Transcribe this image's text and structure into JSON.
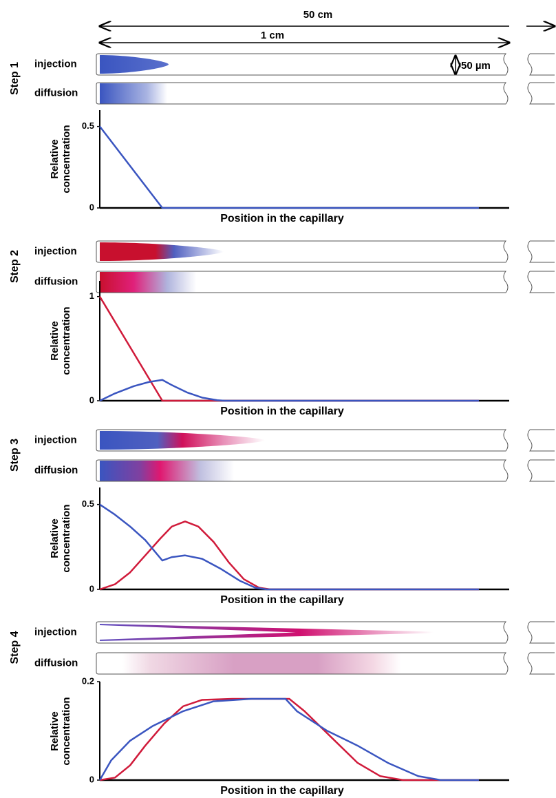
{
  "header": {
    "total_length": "50 cm",
    "segment_length": "1 cm",
    "diameter": "50 µm"
  },
  "chart_data": [
    {
      "type": "line",
      "step": "Step 1",
      "rows": [
        "injection",
        "diffusion"
      ],
      "ylabel": "Relative concentration",
      "xlabel": "Position in the capillary",
      "xlim": [
        0,
        108
      ],
      "ylim": [
        0,
        0.6
      ],
      "yticks": [
        0,
        0.5
      ],
      "series": [
        {
          "color": "#3a55c0",
          "x": [
            0,
            16.5,
            100
          ],
          "values": [
            0.5,
            0,
            0
          ]
        }
      ]
    },
    {
      "type": "line",
      "step": "Step 2",
      "rows": [
        "injection",
        "diffusion"
      ],
      "ylabel": "Relative concentration",
      "xlabel": "Position in the capillary",
      "xlim": [
        0,
        108
      ],
      "ylim": [
        0,
        1.15
      ],
      "yticks": [
        0,
        1
      ],
      "series": [
        {
          "color": "#d01a3a",
          "x": [
            0,
            16.5,
            100
          ],
          "values": [
            1,
            0,
            0
          ]
        },
        {
          "color": "#3a55c0",
          "x": [
            0,
            4,
            9,
            13,
            16.5,
            19,
            23,
            27,
            31,
            33,
            100
          ],
          "values": [
            0,
            0.07,
            0.14,
            0.18,
            0.2,
            0.15,
            0.08,
            0.03,
            0.005,
            0,
            0
          ]
        }
      ]
    },
    {
      "type": "line",
      "step": "Step 3",
      "rows": [
        "injection",
        "diffusion"
      ],
      "ylabel": "Relative concentration",
      "xlabel": "Position in the capillary",
      "xlim": [
        0,
        108
      ],
      "ylim": [
        0,
        0.6
      ],
      "yticks": [
        0,
        0.5
      ],
      "series": [
        {
          "color": "#d01a3a",
          "x": [
            0,
            4,
            8,
            12,
            16,
            19,
            22.5,
            26,
            30,
            34,
            38,
            42,
            45,
            100
          ],
          "values": [
            0,
            0.03,
            0.1,
            0.2,
            0.3,
            0.37,
            0.4,
            0.37,
            0.28,
            0.16,
            0.06,
            0.01,
            0,
            0
          ]
        },
        {
          "color": "#3a55c0",
          "x": [
            0,
            4,
            8,
            12,
            16.5,
            19,
            22.5,
            27,
            32,
            37,
            41,
            44,
            100
          ],
          "values": [
            0.5,
            0.44,
            0.37,
            0.29,
            0.17,
            0.19,
            0.2,
            0.18,
            0.12,
            0.05,
            0.01,
            0,
            0
          ]
        }
      ]
    },
    {
      "type": "line",
      "step": "Step 4",
      "rows": [
        "injection",
        "diffusion"
      ],
      "ylabel": "Relative concentration",
      "xlabel": "Position in the capillary",
      "xlim": [
        0,
        108
      ],
      "ylim": [
        0,
        0.2
      ],
      "yticks": [
        0,
        0.2
      ],
      "series": [
        {
          "color": "#d01a3a",
          "x": [
            0,
            4,
            8,
            12,
            17,
            22,
            27,
            35,
            50,
            54,
            62,
            68,
            74,
            80,
            100
          ],
          "values": [
            0,
            0.005,
            0.03,
            0.07,
            0.115,
            0.15,
            0.163,
            0.165,
            0.165,
            0.14,
            0.08,
            0.035,
            0.008,
            0,
            0
          ]
        },
        {
          "color": "#3a55c0",
          "x": [
            0,
            3,
            8,
            14,
            22,
            30,
            40,
            49,
            52,
            60,
            68,
            76,
            84,
            90,
            100
          ],
          "values": [
            0,
            0.04,
            0.08,
            0.11,
            0.14,
            0.16,
            0.165,
            0.165,
            0.14,
            0.1,
            0.07,
            0.035,
            0.008,
            0,
            0
          ]
        }
      ]
    }
  ]
}
